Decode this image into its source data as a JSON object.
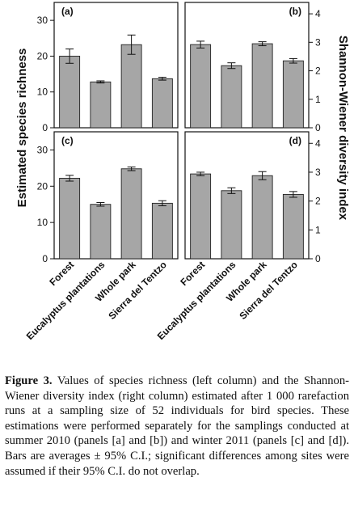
{
  "chart_data": {
    "type": "bar",
    "categories": [
      "Forest",
      "Eucalyptus plantations",
      "Whole park",
      "Sierra del Tentzo"
    ],
    "left_axis_title": "Estimated species richness",
    "right_axis_title": "Shannon-Wiener diversity index",
    "left_ylim": [
      0,
      35
    ],
    "left_ticks": [
      0,
      10,
      20,
      30
    ],
    "right_ylim": [
      0,
      4.4
    ],
    "right_ticks": [
      0,
      1,
      2,
      3,
      4
    ],
    "panels": [
      {
        "label": "(a)",
        "axis": "left",
        "values": [
          20.0,
          12.8,
          23.2,
          13.7
        ],
        "ci": [
          2.0,
          0.3,
          2.7,
          0.4
        ]
      },
      {
        "label": "(b)",
        "axis": "right",
        "values": [
          2.92,
          2.18,
          2.95,
          2.35
        ],
        "ci": [
          0.12,
          0.1,
          0.07,
          0.08
        ]
      },
      {
        "label": "(c)",
        "axis": "left",
        "values": [
          22.2,
          15.0,
          24.8,
          15.3
        ],
        "ci": [
          0.8,
          0.5,
          0.5,
          0.7
        ]
      },
      {
        "label": "(d)",
        "axis": "right",
        "values": [
          2.94,
          2.36,
          2.88,
          2.23
        ],
        "ci": [
          0.06,
          0.1,
          0.14,
          0.1
        ]
      }
    ]
  },
  "caption": {
    "label": "Figure 3.",
    "text": " Values of species richness (left column) and the Shannon-Wiener diversity index (right column) estimated after 1 000 rarefaction runs at a sampling size of 52 individuals for bird species. These estimations were performed separately for the samplings conducted at summer 2010 (panels [a] and [b]) and winter 2011 (panels [c] and [d]). Bars are averages ± 95% C.I.; significant differences among sites were assumed if their 95% C.I. do not overlap."
  }
}
